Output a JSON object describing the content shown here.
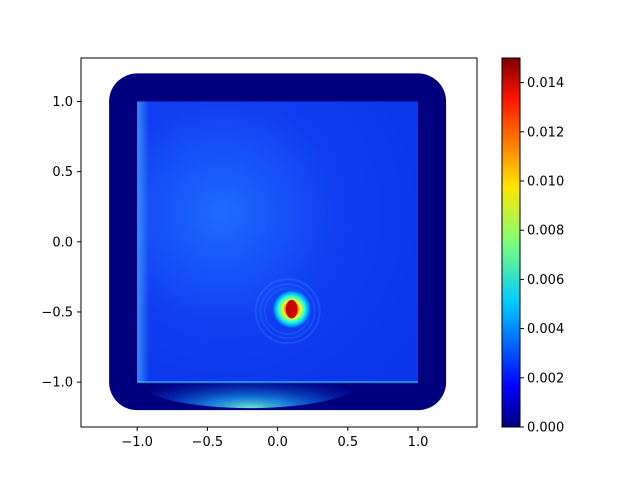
{
  "chart_data": {
    "type": "heatmap",
    "title": "",
    "xlabel": "",
    "ylabel": "",
    "xlim": [
      -1.4,
      1.42
    ],
    "ylim": [
      -1.32,
      1.31
    ],
    "x_ticks": [
      -1.0,
      -0.5,
      0.0,
      0.5,
      1.0
    ],
    "x_tick_labels": [
      "−1.0",
      "−0.5",
      "0.0",
      "0.5",
      "1.0"
    ],
    "y_ticks": [
      -1.0,
      -0.5,
      0.0,
      0.5,
      1.0
    ],
    "y_tick_labels": [
      "−1.0",
      "−0.5",
      "0.0",
      "0.5",
      "1.0"
    ],
    "colormap": "jet",
    "colorbar": {
      "range": [
        0.0,
        0.015
      ],
      "ticks": [
        0.0,
        0.002,
        0.004,
        0.006,
        0.008,
        0.01,
        0.012,
        0.014
      ],
      "tick_labels": [
        "0.000",
        "0.002",
        "0.004",
        "0.006",
        "0.008",
        "0.010",
        "0.012",
        "0.014"
      ]
    },
    "field": {
      "inner_domain": {
        "x": [
          -1.0,
          1.0
        ],
        "y": [
          -1.0,
          1.0
        ]
      },
      "outer_domain": {
        "x": [
          -1.2,
          1.2
        ],
        "y": [
          -1.2,
          1.2
        ],
        "corner_radius": 0.2
      },
      "outer_band_value": 0.0,
      "background_value_range": [
        0.0015,
        0.003
      ],
      "hotspot": {
        "x": 0.1,
        "y": -0.48,
        "radius": 0.12,
        "peak_value": 0.015
      },
      "bottom_edge_glow": {
        "x": -0.2,
        "y": -1.0,
        "peak_value": 0.005
      }
    }
  }
}
